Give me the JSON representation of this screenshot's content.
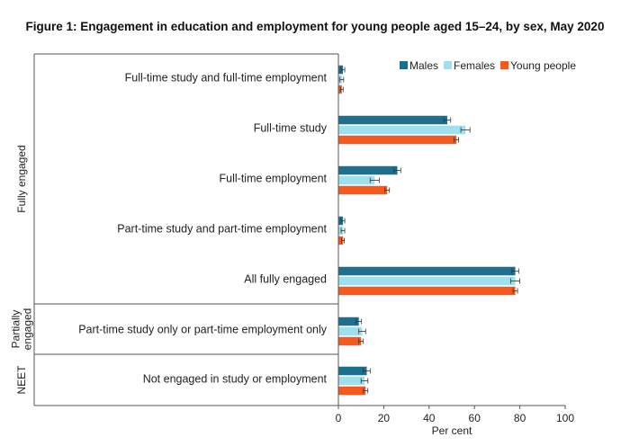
{
  "chart_data": {
    "type": "bar",
    "orientation": "horizontal",
    "title": "Figure 1: Engagement in education and employment for young people aged 15–24, by sex, May 2020",
    "xlabel": "Per cent",
    "xlim": [
      0,
      100
    ],
    "xticks": [
      "0",
      "20",
      "40",
      "60",
      "80",
      "100"
    ],
    "legend_position": "top-right",
    "colors": {
      "Males": "#1f6e8c",
      "Females": "#9fe0ec",
      "Young people": "#f15a22"
    },
    "groups": [
      {
        "label": "Fully engaged",
        "categories": [
          0,
          1,
          2,
          3,
          4
        ]
      },
      {
        "label": "Partially engaged",
        "lines": [
          "Partially",
          "engaged"
        ],
        "categories": [
          5
        ]
      },
      {
        "label": "NEET",
        "categories": [
          6
        ]
      }
    ],
    "categories": [
      "Full-time study and full-time employment",
      "Full-time study",
      "Full-time employment",
      "Part-time study and part-time employment",
      "All fully engaged",
      "Part-time study only or part-time employment only",
      "Not engaged in study or employment"
    ],
    "series": [
      {
        "name": "Males",
        "values": [
          2,
          48,
          26,
          2,
          78,
          9,
          12.5
        ],
        "errors": [
          0.8,
          1.5,
          1.5,
          0.8,
          1.5,
          1.2,
          1.5
        ]
      },
      {
        "name": "Females",
        "values": [
          1.5,
          56,
          16,
          2,
          78,
          10.5,
          11.5
        ],
        "errors": [
          0.8,
          2,
          2,
          0.8,
          2,
          1.5,
          1.5
        ]
      },
      {
        "name": "Young people",
        "values": [
          1.5,
          52,
          21.5,
          2,
          78,
          10,
          12
        ],
        "errors": [
          0.6,
          1,
          1,
          0.6,
          1,
          1,
          1
        ]
      }
    ]
  }
}
